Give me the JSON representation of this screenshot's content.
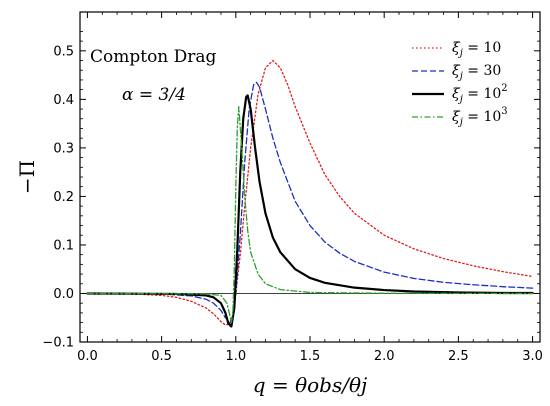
{
  "chart_data": {
    "type": "line",
    "title": "",
    "xlabel": "q = θobs/θj",
    "ylabel": "−Π",
    "xlim": [
      -0.05,
      3.05
    ],
    "ylim": [
      -0.1,
      0.58
    ],
    "xticks": [
      "0.0",
      "0.5",
      "1.0",
      "1.5",
      "2.0",
      "2.5",
      "3.0"
    ],
    "yticks": [
      "−0.1",
      "0.0",
      "0.1",
      "0.2",
      "0.3",
      "0.4",
      "0.5"
    ],
    "grid": false,
    "legend_position": "top-right",
    "annotations": [
      "Compton Drag",
      "α = 3/4"
    ],
    "series": [
      {
        "name": "ξj = 10",
        "legend_sub": "j",
        "legend_value": "= 10",
        "legend_sup": "",
        "color": "#e41a1c",
        "style": "dotted",
        "x": [
          0,
          0.3,
          0.5,
          0.6,
          0.7,
          0.8,
          0.85,
          0.9,
          0.93,
          0.96,
          0.98,
          1.0,
          1.03,
          1.06,
          1.1,
          1.15,
          1.2,
          1.25,
          1.3,
          1.35,
          1.4,
          1.5,
          1.6,
          1.7,
          1.8,
          2.0,
          2.2,
          2.4,
          2.6,
          2.8,
          3.0
        ],
        "y": [
          0,
          -0.001,
          -0.004,
          -0.008,
          -0.016,
          -0.03,
          -0.042,
          -0.058,
          -0.065,
          -0.062,
          -0.045,
          0.0,
          0.08,
          0.18,
          0.3,
          0.41,
          0.465,
          0.48,
          0.465,
          0.43,
          0.385,
          0.31,
          0.245,
          0.2,
          0.165,
          0.12,
          0.092,
          0.072,
          0.057,
          0.045,
          0.035
        ]
      },
      {
        "name": "ξj = 30",
        "legend_sub": "j",
        "legend_value": "= 30",
        "legend_sup": "",
        "color": "#1f2fbf",
        "style": "dashed",
        "x": [
          0,
          0.5,
          0.7,
          0.8,
          0.85,
          0.9,
          0.93,
          0.96,
          0.98,
          1.0,
          1.03,
          1.06,
          1.09,
          1.12,
          1.14,
          1.16,
          1.2,
          1.25,
          1.3,
          1.4,
          1.5,
          1.6,
          1.7,
          1.8,
          2.0,
          2.2,
          2.4,
          2.6,
          2.8,
          3.0
        ],
        "y": [
          0,
          -0.001,
          -0.005,
          -0.012,
          -0.02,
          -0.035,
          -0.05,
          -0.06,
          -0.045,
          0.0,
          0.12,
          0.27,
          0.38,
          0.43,
          0.435,
          0.425,
          0.38,
          0.32,
          0.27,
          0.19,
          0.14,
          0.106,
          0.083,
          0.066,
          0.044,
          0.031,
          0.023,
          0.018,
          0.014,
          0.011
        ]
      },
      {
        "name": "ξj = 10^2",
        "legend_sub": "j",
        "legend_value": "= 10",
        "legend_sup": "2",
        "color": "#000000",
        "style": "solid",
        "x": [
          0,
          0.6,
          0.8,
          0.85,
          0.9,
          0.93,
          0.95,
          0.97,
          0.99,
          1.01,
          1.03,
          1.05,
          1.07,
          1.08,
          1.1,
          1.13,
          1.16,
          1.2,
          1.25,
          1.3,
          1.4,
          1.5,
          1.6,
          1.8,
          2.0,
          2.2,
          2.5,
          2.8,
          3.0
        ],
        "y": [
          0,
          -0.001,
          -0.004,
          -0.008,
          -0.02,
          -0.04,
          -0.062,
          -0.068,
          -0.03,
          0.09,
          0.25,
          0.36,
          0.405,
          0.408,
          0.38,
          0.3,
          0.23,
          0.165,
          0.115,
          0.085,
          0.05,
          0.032,
          0.022,
          0.012,
          0.007,
          0.004,
          0.002,
          0.001,
          0.001
        ]
      },
      {
        "name": "ξj = 10^3",
        "legend_sub": "j",
        "legend_value": "= 10",
        "legend_sup": "3",
        "color": "#2ca02c",
        "style": "dashdot",
        "x": [
          0,
          0.8,
          0.9,
          0.94,
          0.96,
          0.97,
          0.98,
          0.99,
          1.0,
          1.01,
          1.02,
          1.04,
          1.06,
          1.08,
          1.1,
          1.15,
          1.2,
          1.3,
          1.5,
          2.0,
          3.0
        ],
        "y": [
          0,
          -0.001,
          -0.004,
          -0.02,
          -0.045,
          -0.06,
          -0.04,
          0.05,
          0.22,
          0.34,
          0.385,
          0.3,
          0.2,
          0.13,
          0.085,
          0.04,
          0.02,
          0.008,
          0.002,
          0.0005,
          0.0
        ]
      }
    ]
  }
}
